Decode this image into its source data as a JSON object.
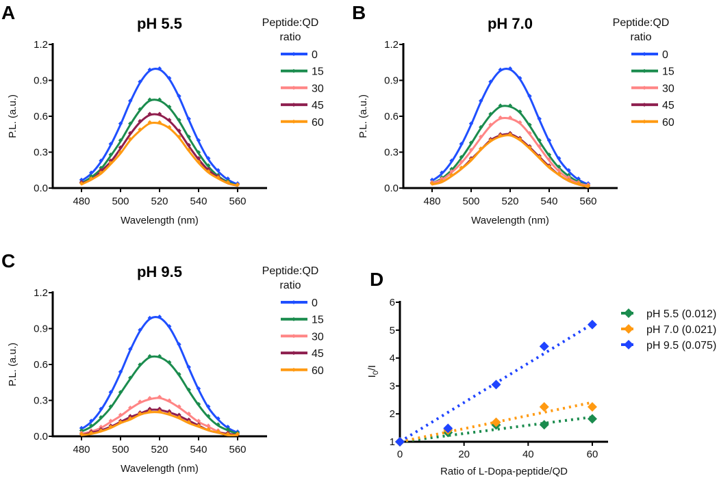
{
  "chart_data": [
    {
      "type": "line",
      "panel_label": "A",
      "title": "pH 5.5",
      "xlabel": "Wavelength (nm)",
      "ylabel": "P.L. (a.u.)",
      "xlim": [
        465,
        575
      ],
      "ylim": [
        0,
        1.2
      ],
      "xticks": [
        480,
        500,
        520,
        540,
        560
      ],
      "yticks": [
        "0.0",
        "0.3",
        "0.6",
        "0.9",
        "1.2"
      ],
      "legend_title": [
        "Peptide:QD",
        "ratio"
      ],
      "legend_position": "right",
      "x": [
        480,
        485,
        490,
        495,
        500,
        505,
        510,
        515,
        520,
        525,
        530,
        535,
        540,
        545,
        550,
        555,
        560
      ],
      "series": [
        {
          "name": "0",
          "color": "#1f4fff",
          "values": [
            0.06,
            0.12,
            0.22,
            0.36,
            0.53,
            0.72,
            0.88,
            0.98,
            0.99,
            0.91,
            0.76,
            0.57,
            0.39,
            0.24,
            0.14,
            0.07,
            0.03
          ]
        },
        {
          "name": "15",
          "color": "#1b8c4e",
          "values": [
            0.04,
            0.09,
            0.16,
            0.27,
            0.39,
            0.53,
            0.65,
            0.73,
            0.73,
            0.67,
            0.56,
            0.42,
            0.29,
            0.18,
            0.1,
            0.05,
            0.02
          ]
        },
        {
          "name": "30",
          "color": "#ff8585",
          "values": [
            0.04,
            0.07,
            0.14,
            0.22,
            0.33,
            0.45,
            0.55,
            0.61,
            0.61,
            0.56,
            0.47,
            0.35,
            0.24,
            0.15,
            0.09,
            0.04,
            0.02
          ]
        },
        {
          "name": "45",
          "color": "#8e1f4f",
          "values": [
            0.04,
            0.07,
            0.14,
            0.22,
            0.33,
            0.45,
            0.55,
            0.61,
            0.61,
            0.56,
            0.47,
            0.35,
            0.24,
            0.15,
            0.09,
            0.04,
            0.02
          ]
        },
        {
          "name": "60",
          "color": "#ff9a12",
          "values": [
            0.03,
            0.07,
            0.12,
            0.2,
            0.29,
            0.4,
            0.48,
            0.54,
            0.54,
            0.5,
            0.42,
            0.31,
            0.21,
            0.13,
            0.08,
            0.04,
            0.02
          ]
        }
      ]
    },
    {
      "type": "line",
      "panel_label": "B",
      "title": "pH 7.0",
      "xlabel": "Wavelength (nm)",
      "ylabel": "P.L. (a.u.)",
      "xlim": [
        465,
        575
      ],
      "ylim": [
        0,
        1.2
      ],
      "xticks": [
        480,
        500,
        520,
        540,
        560
      ],
      "yticks": [
        "0.0",
        "0.3",
        "0.6",
        "0.9",
        "1.2"
      ],
      "legend_title": [
        "Peptide:QD",
        "ratio"
      ],
      "legend_position": "right",
      "x": [
        480,
        485,
        490,
        495,
        500,
        505,
        510,
        515,
        520,
        525,
        530,
        535,
        540,
        545,
        550,
        555,
        560
      ],
      "series": [
        {
          "name": "0",
          "color": "#1f4fff",
          "values": [
            0.06,
            0.12,
            0.22,
            0.36,
            0.53,
            0.72,
            0.88,
            0.98,
            0.99,
            0.91,
            0.76,
            0.57,
            0.39,
            0.24,
            0.14,
            0.07,
            0.03
          ]
        },
        {
          "name": "15",
          "color": "#1b8c4e",
          "values": [
            0.04,
            0.08,
            0.15,
            0.25,
            0.37,
            0.5,
            0.61,
            0.68,
            0.68,
            0.63,
            0.52,
            0.39,
            0.27,
            0.17,
            0.1,
            0.05,
            0.02
          ]
        },
        {
          "name": "30",
          "color": "#ff8585",
          "values": [
            0.04,
            0.07,
            0.13,
            0.21,
            0.31,
            0.42,
            0.52,
            0.58,
            0.58,
            0.54,
            0.45,
            0.34,
            0.23,
            0.14,
            0.08,
            0.04,
            0.02
          ]
        },
        {
          "name": "45",
          "color": "#8e1f4f",
          "values": [
            0.03,
            0.05,
            0.1,
            0.16,
            0.24,
            0.32,
            0.4,
            0.44,
            0.45,
            0.41,
            0.34,
            0.26,
            0.18,
            0.11,
            0.06,
            0.03,
            0.01
          ]
        },
        {
          "name": "60",
          "color": "#ff9a12",
          "values": [
            0.03,
            0.05,
            0.1,
            0.16,
            0.23,
            0.32,
            0.39,
            0.43,
            0.44,
            0.4,
            0.33,
            0.25,
            0.17,
            0.11,
            0.06,
            0.03,
            0.01
          ]
        }
      ]
    },
    {
      "type": "line",
      "panel_label": "C",
      "title": "pH 9.5",
      "xlabel": "Wavelength (nm)",
      "ylabel": "P.L. (a.u.)",
      "xlim": [
        465,
        575
      ],
      "ylim": [
        0,
        1.2
      ],
      "xticks": [
        480,
        500,
        520,
        540,
        560
      ],
      "yticks": [
        "0.0",
        "0.3",
        "0.6",
        "0.9",
        "1.2"
      ],
      "legend_title": [
        "Peptide:QD",
        "ratio"
      ],
      "legend_position": "right",
      "x": [
        480,
        485,
        490,
        495,
        500,
        505,
        510,
        515,
        520,
        525,
        530,
        535,
        540,
        545,
        550,
        555,
        560
      ],
      "series": [
        {
          "name": "0",
          "color": "#1f4fff",
          "values": [
            0.06,
            0.12,
            0.22,
            0.36,
            0.53,
            0.72,
            0.88,
            0.98,
            0.99,
            0.91,
            0.76,
            0.57,
            0.39,
            0.24,
            0.14,
            0.07,
            0.03
          ]
        },
        {
          "name": "15",
          "color": "#1b8c4e",
          "values": [
            0.04,
            0.08,
            0.15,
            0.24,
            0.36,
            0.48,
            0.59,
            0.66,
            0.66,
            0.61,
            0.51,
            0.38,
            0.26,
            0.16,
            0.09,
            0.05,
            0.02
          ]
        },
        {
          "name": "30",
          "color": "#ff8585",
          "values": [
            0.02,
            0.04,
            0.07,
            0.12,
            0.17,
            0.23,
            0.28,
            0.31,
            0.32,
            0.29,
            0.24,
            0.18,
            0.12,
            0.08,
            0.04,
            0.02,
            0.01
          ]
        },
        {
          "name": "45",
          "color": "#8e1f4f",
          "values": [
            0.01,
            0.03,
            0.05,
            0.08,
            0.12,
            0.16,
            0.19,
            0.22,
            0.22,
            0.2,
            0.17,
            0.13,
            0.09,
            0.05,
            0.03,
            0.02,
            0.01
          ]
        },
        {
          "name": "60",
          "color": "#ff9a12",
          "values": [
            0.01,
            0.02,
            0.04,
            0.07,
            0.11,
            0.14,
            0.18,
            0.2,
            0.2,
            0.18,
            0.15,
            0.11,
            0.08,
            0.05,
            0.03,
            0.01,
            0.01
          ]
        }
      ]
    },
    {
      "type": "scatter",
      "panel_label": "D",
      "xlabel": "Ratio of L-Dopa-peptide/QD",
      "ylabel": {
        "base": "I",
        "sub": "0",
        "rest": "/I"
      },
      "xlim": [
        0,
        65
      ],
      "ylim": [
        1,
        6
      ],
      "xticks": [
        0,
        20,
        40,
        60
      ],
      "yticks": [
        1,
        2,
        3,
        4,
        5,
        6
      ],
      "legend_position": "top-right",
      "fit": "linear, dotted",
      "x": [
        0,
        15,
        30,
        45,
        60
      ],
      "series": [
        {
          "name": "pH 5.5 (0.012)",
          "color": "#1b8c4e",
          "values": [
            1.0,
            1.33,
            1.6,
            1.61,
            1.82
          ]
        },
        {
          "name": "pH 7.0 (0.021)",
          "color": "#ff9a12",
          "values": [
            1.0,
            1.42,
            1.7,
            2.25,
            2.25
          ]
        },
        {
          "name": "pH 9.5 (0.075)",
          "color": "#1f44ff",
          "values": [
            1.0,
            1.48,
            3.05,
            4.42,
            5.2
          ]
        }
      ]
    }
  ]
}
